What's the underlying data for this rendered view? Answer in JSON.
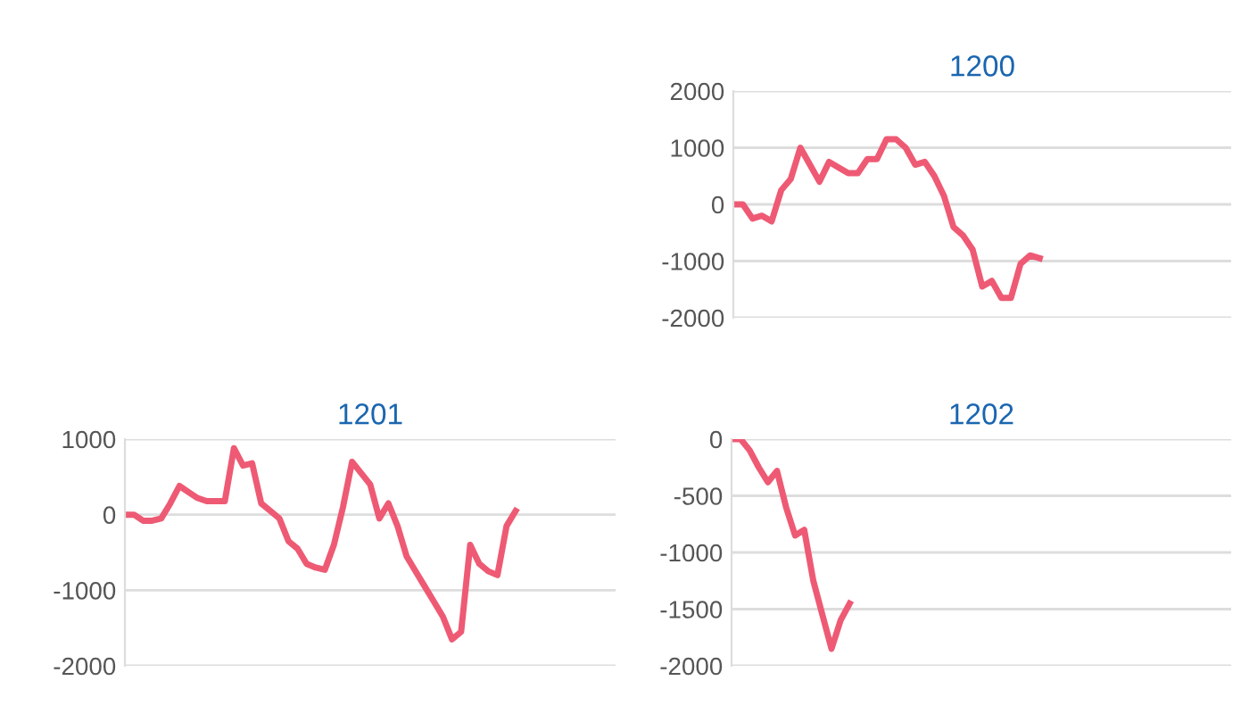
{
  "chart_data": [
    {
      "type": "line",
      "title": "1200",
      "categories": [
        null,
        null,
        null,
        null,
        null,
        null,
        null,
        null,
        null,
        null,
        null,
        null,
        null,
        null,
        null,
        null,
        null,
        null,
        null,
        null,
        null,
        null,
        null,
        null,
        null,
        null,
        null,
        null,
        null,
        null,
        null,
        null,
        null,
        null,
        null,
        null,
        null,
        null,
        null,
        null,
        null,
        null,
        null,
        null,
        null,
        null,
        null,
        null,
        null,
        null,
        null,
        null,
        null
      ],
      "series": [
        {
          "color": "#ee5a74",
          "values": [
            0,
            0,
            -250,
            -200,
            -300,
            250,
            450,
            1000,
            700,
            400,
            750,
            650,
            550,
            550,
            800,
            800,
            1150,
            1150,
            1000,
            700,
            750,
            500,
            150,
            -400,
            -550,
            -800,
            -1450,
            -1350,
            -1650,
            -1650,
            -1050,
            -900,
            -950,
            null,
            null,
            null,
            null,
            null,
            null,
            null,
            null,
            null,
            null,
            null,
            null,
            null,
            null,
            null,
            null,
            null,
            null,
            null,
            null
          ]
        }
      ],
      "ylim": [
        -2000,
        2000
      ],
      "yticks": [
        -2000,
        -1000,
        0,
        1000,
        2000
      ],
      "grid": "y",
      "marker": "none",
      "line_style": "solid"
    },
    {
      "type": "line",
      "title": "1201",
      "categories": [
        null,
        null,
        null,
        null,
        null,
        null,
        null,
        null,
        null,
        null,
        null,
        null,
        null,
        null,
        null,
        null,
        null,
        null,
        null,
        null,
        null,
        null,
        null,
        null,
        null,
        null,
        null,
        null,
        null,
        null,
        null,
        null,
        null,
        null,
        null,
        null,
        null,
        null,
        null,
        null,
        null,
        null,
        null,
        null,
        null,
        null,
        null,
        null,
        null,
        null,
        null,
        null,
        null,
        null,
        null
      ],
      "series": [
        {
          "color": "#ee5a74",
          "values": [
            0,
            0,
            -80,
            -80,
            -50,
            150,
            380,
            300,
            220,
            180,
            180,
            180,
            880,
            650,
            680,
            150,
            50,
            -50,
            -350,
            -450,
            -650,
            -700,
            -730,
            -400,
            100,
            700,
            550,
            400,
            -50,
            150,
            -150,
            -550,
            -750,
            -950,
            -1150,
            -1350,
            -1650,
            -1550,
            -400,
            -650,
            -750,
            -800,
            -150,
            50,
            null,
            null,
            null,
            null,
            null,
            null,
            null,
            null,
            null,
            null,
            null
          ]
        }
      ],
      "ylim": [
        -2000,
        1000
      ],
      "yticks": [
        -2000,
        -1000,
        0,
        1000
      ],
      "grid": "y",
      "marker": "none",
      "line_style": "solid"
    },
    {
      "type": "line",
      "title": "1202",
      "categories": [
        null,
        null,
        null,
        null,
        null,
        null,
        null,
        null,
        null,
        null,
        null,
        null,
        null,
        null,
        null,
        null,
        null,
        null,
        null,
        null,
        null,
        null,
        null,
        null,
        null,
        null,
        null,
        null,
        null,
        null,
        null,
        null,
        null,
        null,
        null,
        null,
        null,
        null,
        null,
        null,
        null,
        null,
        null,
        null,
        null,
        null,
        null,
        null,
        null,
        null,
        null,
        null,
        null,
        null,
        null,
        null
      ],
      "series": [
        {
          "color": "#ee5a74",
          "values": [
            0,
            0,
            -100,
            -250,
            -380,
            -280,
            -600,
            -850,
            -800,
            -1250,
            -1550,
            -1850,
            -1600,
            -1450,
            null,
            null,
            null,
            null,
            null,
            null,
            null,
            null,
            null,
            null,
            null,
            null,
            null,
            null,
            null,
            null,
            null,
            null,
            null,
            null,
            null,
            null,
            null,
            null,
            null,
            null,
            null,
            null,
            null,
            null,
            null,
            null,
            null,
            null,
            null,
            null,
            null,
            null,
            null,
            null,
            null,
            null
          ]
        }
      ],
      "ylim": [
        -2000,
        0
      ],
      "yticks": [
        -2000,
        -1500,
        -1000,
        -500,
        0
      ],
      "grid": "y",
      "marker": "none",
      "line_style": "solid"
    }
  ]
}
